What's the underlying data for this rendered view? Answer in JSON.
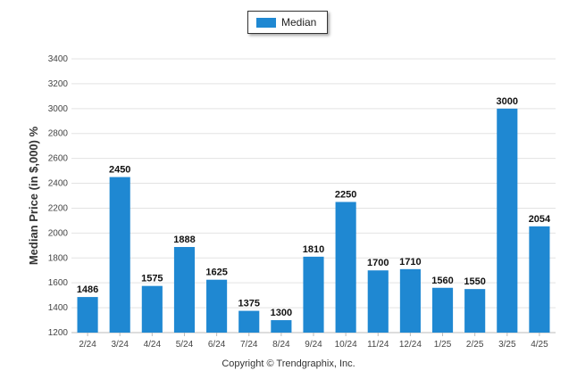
{
  "chart_data": {
    "type": "bar",
    "categories": [
      "2/24",
      "3/24",
      "4/24",
      "5/24",
      "6/24",
      "7/24",
      "8/24",
      "9/24",
      "10/24",
      "11/24",
      "12/24",
      "1/25",
      "2/25",
      "3/25",
      "4/25"
    ],
    "series": [
      {
        "name": "Median",
        "values": [
          1486,
          2450,
          1575,
          1888,
          1625,
          1375,
          1300,
          1810,
          2250,
          1700,
          1710,
          1560,
          1550,
          3000,
          2054
        ]
      }
    ],
    "ylabel": "Median Price (in $,000) %",
    "xlabel": "",
    "ylim": [
      1200,
      3400
    ],
    "yticks": [
      1200,
      1400,
      1600,
      1800,
      2000,
      2200,
      2400,
      2600,
      2800,
      3000,
      3200,
      3400
    ],
    "grid": true,
    "legend_position": "top-center",
    "bar_color": "#1f88d2"
  },
  "legend": {
    "label": "Median"
  },
  "footer": {
    "copyright": "Copyright © Trendgraphix, Inc."
  }
}
